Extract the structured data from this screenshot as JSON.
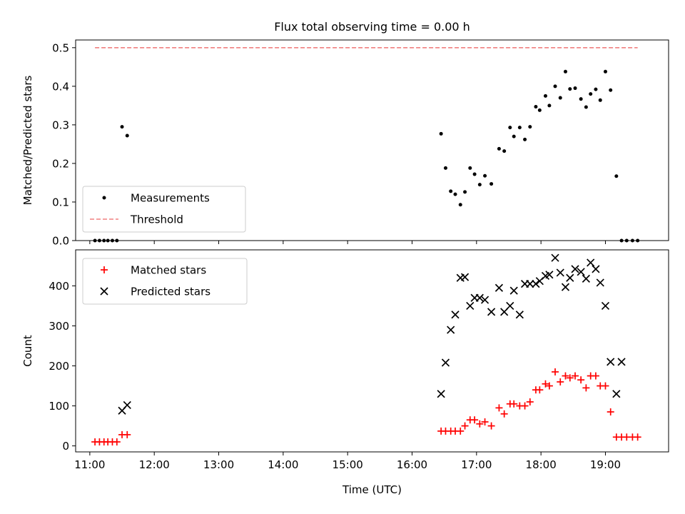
{
  "chart_data": [
    {
      "type": "scatter",
      "title": "Flux total observing time = 0.00 h",
      "xlabel": "",
      "ylabel": "Matched/Predicted stars",
      "xlim": [
        10.78,
        19.98
      ],
      "ylim": [
        0,
        0.52
      ],
      "yticks": [
        0.0,
        0.1,
        0.2,
        0.3,
        0.4,
        0.5
      ],
      "ytick_labels": [
        "0.0",
        "0.1",
        "0.2",
        "0.3",
        "0.4",
        "0.5"
      ],
      "legend_position": "lower-left",
      "series": [
        {
          "name": "Measurements",
          "marker": "dot",
          "color": "#000000",
          "x": [
            11.08,
            11.15,
            11.22,
            11.28,
            11.35,
            11.42,
            11.5,
            11.58,
            16.45,
            16.52,
            16.6,
            16.67,
            16.75,
            16.82,
            16.9,
            16.97,
            17.05,
            17.13,
            17.23,
            17.35,
            17.43,
            17.52,
            17.58,
            17.67,
            17.75,
            17.83,
            17.92,
            17.98,
            18.07,
            18.13,
            18.22,
            18.3,
            18.38,
            18.45,
            18.53,
            18.62,
            18.7,
            18.77,
            18.85,
            18.92,
            19.0,
            19.08,
            19.17,
            19.25,
            19.33,
            19.42,
            19.5
          ],
          "y": [
            0.0,
            0.0,
            0.0,
            0.0,
            0.0,
            0.0,
            0.295,
            0.272,
            0.277,
            0.188,
            0.128,
            0.12,
            0.093,
            0.126,
            0.188,
            0.172,
            0.145,
            0.168,
            0.147,
            0.238,
            0.232,
            0.293,
            0.27,
            0.293,
            0.262,
            0.295,
            0.347,
            0.338,
            0.375,
            0.35,
            0.4,
            0.37,
            0.438,
            0.393,
            0.395,
            0.367,
            0.346,
            0.38,
            0.392,
            0.364,
            0.438,
            0.39,
            0.167,
            0.0,
            0.0,
            0.0,
            0.0
          ]
        },
        {
          "name": "Threshold",
          "line": "dashed",
          "color": "#f08080",
          "x": [
            11.08,
            19.5
          ],
          "y": [
            0.5,
            0.5
          ]
        }
      ]
    },
    {
      "type": "scatter",
      "title": "",
      "xlabel": "Time (UTC)",
      "ylabel": "Count",
      "xlim": [
        10.78,
        19.98
      ],
      "ylim": [
        -15,
        490
      ],
      "yticks": [
        0,
        100,
        200,
        300,
        400
      ],
      "ytick_labels": [
        "0",
        "100",
        "200",
        "300",
        "400"
      ],
      "xticks": [
        11,
        12,
        13,
        14,
        15,
        16,
        17,
        18,
        19
      ],
      "xtick_labels": [
        "11:00",
        "12:00",
        "13:00",
        "14:00",
        "15:00",
        "16:00",
        "17:00",
        "18:00",
        "19:00"
      ],
      "legend_position": "upper-left",
      "series": [
        {
          "name": "Matched stars",
          "marker": "plus",
          "color": "#ff0000",
          "x": [
            11.08,
            11.15,
            11.22,
            11.28,
            11.35,
            11.42,
            11.5,
            11.58,
            16.45,
            16.52,
            16.6,
            16.67,
            16.75,
            16.82,
            16.9,
            16.97,
            17.05,
            17.13,
            17.23,
            17.35,
            17.43,
            17.52,
            17.58,
            17.67,
            17.75,
            17.83,
            17.92,
            17.98,
            18.07,
            18.13,
            18.22,
            18.3,
            18.38,
            18.45,
            18.53,
            18.62,
            18.7,
            18.77,
            18.85,
            18.92,
            19.0,
            19.08,
            19.17,
            19.25,
            19.33,
            19.42,
            19.5
          ],
          "y": [
            10,
            10,
            10,
            10,
            10,
            10,
            28,
            28,
            37,
            37,
            37,
            37,
            37,
            50,
            65,
            65,
            55,
            60,
            50,
            95,
            80,
            105,
            105,
            100,
            100,
            110,
            140,
            140,
            155,
            150,
            185,
            160,
            175,
            170,
            175,
            165,
            145,
            175,
            175,
            150,
            150,
            85,
            22,
            22,
            22,
            22,
            22
          ]
        },
        {
          "name": "Predicted stars",
          "marker": "x",
          "color": "#000000",
          "x": [
            11.5,
            11.58,
            16.45,
            16.52,
            16.6,
            16.67,
            16.75,
            16.82,
            16.9,
            16.97,
            17.05,
            17.13,
            17.23,
            17.35,
            17.43,
            17.52,
            17.58,
            17.67,
            17.75,
            17.83,
            17.92,
            17.98,
            18.07,
            18.13,
            18.22,
            18.3,
            18.38,
            18.45,
            18.53,
            18.62,
            18.7,
            18.77,
            18.85,
            18.92,
            19.0,
            19.08,
            19.17,
            19.25
          ],
          "y": [
            88,
            102,
            130,
            208,
            290,
            328,
            420,
            422,
            350,
            370,
            370,
            365,
            335,
            395,
            335,
            350,
            388,
            328,
            405,
            405,
            405,
            412,
            425,
            428,
            470,
            433,
            397,
            420,
            442,
            435,
            418,
            458,
            442,
            408,
            350,
            210,
            130,
            210
          ]
        }
      ]
    }
  ]
}
